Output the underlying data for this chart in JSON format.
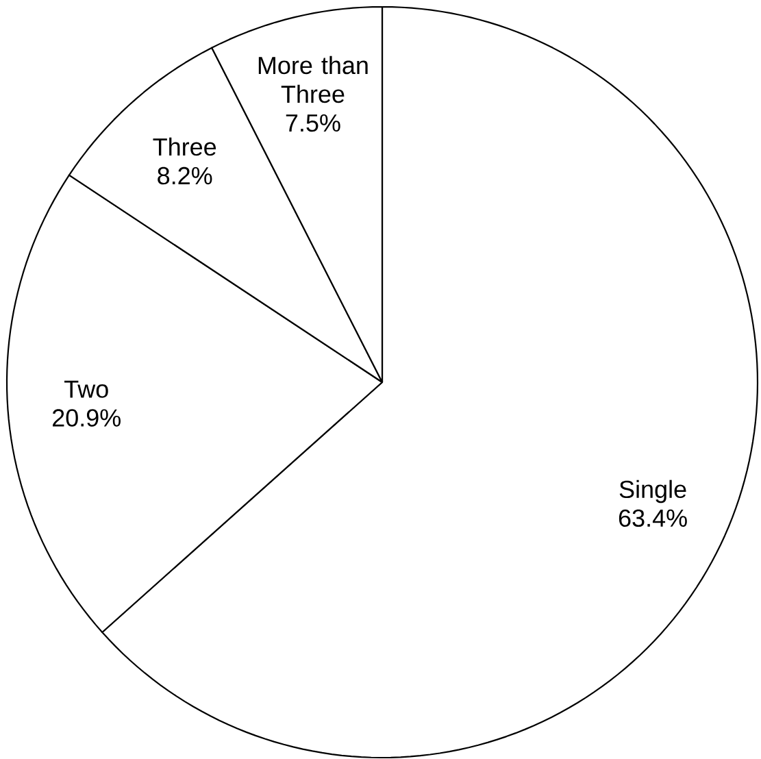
{
  "chart_data": {
    "type": "pie",
    "categories": [
      "Single",
      "Two",
      "Three",
      "More than Three"
    ],
    "values": [
      63.4,
      20.9,
      8.2,
      7.5
    ],
    "colors": [
      "#ffffff",
      "#ffffff",
      "#ffffff",
      "#ffffff"
    ],
    "value_labels": [
      "63.4%",
      "20.9%",
      "8.2%",
      "7.5%"
    ]
  }
}
